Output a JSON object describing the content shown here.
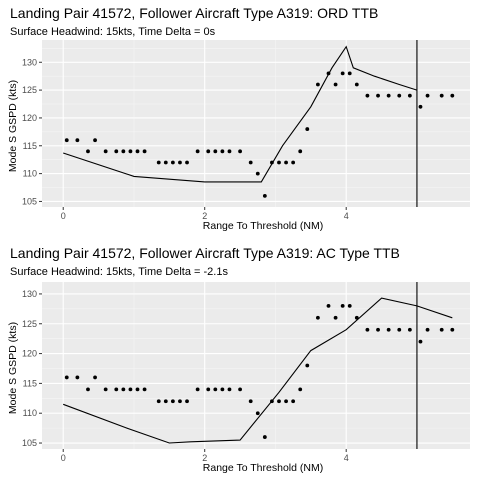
{
  "chart_data": [
    {
      "type": "scatter",
      "title": "Landing Pair 41572, Follower Aircraft Type A319: ORD TTB",
      "subtitle": "Surface Headwind: 15kts, Time Delta = 0s",
      "xlabel": "Range To Threshold (NM)",
      "ylabel": "Mode S GSPD (kts)",
      "xlim": [
        -0.3,
        5.75
      ],
      "ylim": [
        104,
        134
      ],
      "x_ticks": [
        0,
        2,
        4
      ],
      "y_ticks": [
        105,
        110,
        115,
        120,
        125,
        130
      ],
      "grid": true,
      "vline_x": 5.0,
      "points": {
        "x": [
          0.05,
          0.2,
          0.35,
          0.45,
          0.6,
          0.75,
          0.85,
          0.95,
          1.05,
          1.15,
          1.35,
          1.45,
          1.55,
          1.65,
          1.75,
          1.9,
          2.05,
          2.15,
          2.25,
          2.35,
          2.5,
          2.65,
          2.75,
          2.85,
          2.95,
          3.05,
          3.15,
          3.25,
          3.35,
          3.45,
          3.6,
          3.75,
          3.85,
          3.95,
          4.05,
          4.15,
          4.3,
          4.45,
          4.6,
          4.75,
          4.9,
          5.05,
          5.15,
          5.35,
          5.5
        ],
        "y": [
          116,
          116,
          114,
          116,
          114,
          114,
          114,
          114,
          114,
          114,
          112,
          112,
          112,
          112,
          112,
          114,
          114,
          114,
          114,
          114,
          114,
          112,
          110,
          106,
          112,
          112,
          112,
          112,
          114,
          118,
          126,
          128,
          126,
          128,
          128,
          126,
          124,
          124,
          124,
          124,
          124,
          122,
          124,
          124,
          124
        ]
      },
      "line": {
        "x": [
          0.0,
          1.0,
          2.0,
          2.8,
          3.1,
          3.5,
          3.8,
          4.0,
          4.1,
          4.4,
          4.75,
          5.0
        ],
        "y": [
          113.7,
          109.5,
          108.5,
          108.5,
          115,
          122,
          129,
          132.8,
          129,
          127.5,
          126,
          125
        ]
      }
    },
    {
      "type": "scatter",
      "title": "Landing Pair 41572, Follower Aircraft Type A319: AC Type TTB",
      "subtitle": "Surface Headwind: 15kts, Time Delta = -2.1s",
      "xlabel": "Range To Threshold (NM)",
      "ylabel": "Mode S GSPD (kts)",
      "xlim": [
        -0.3,
        5.75
      ],
      "ylim": [
        104,
        132
      ],
      "x_ticks": [
        0,
        2,
        4
      ],
      "y_ticks": [
        105,
        110,
        115,
        120,
        125,
        130
      ],
      "grid": true,
      "vline_x": 5.0,
      "points": {
        "x": [
          0.05,
          0.2,
          0.35,
          0.45,
          0.6,
          0.75,
          0.85,
          0.95,
          1.05,
          1.15,
          1.35,
          1.45,
          1.55,
          1.65,
          1.75,
          1.9,
          2.05,
          2.15,
          2.25,
          2.35,
          2.5,
          2.65,
          2.75,
          2.85,
          2.95,
          3.05,
          3.15,
          3.25,
          3.35,
          3.45,
          3.6,
          3.75,
          3.85,
          3.95,
          4.05,
          4.15,
          4.3,
          4.45,
          4.6,
          4.75,
          4.9,
          5.05,
          5.15,
          5.35,
          5.5
        ],
        "y": [
          116,
          116,
          114,
          116,
          114,
          114,
          114,
          114,
          114,
          114,
          112,
          112,
          112,
          112,
          112,
          114,
          114,
          114,
          114,
          114,
          114,
          112,
          110,
          106,
          112,
          112,
          112,
          112,
          114,
          118,
          126,
          128,
          126,
          128,
          128,
          126,
          124,
          124,
          124,
          124,
          124,
          122,
          124,
          124,
          124
        ]
      },
      "line": {
        "x": [
          0.0,
          0.9,
          1.5,
          1.8,
          2.5,
          3.05,
          3.5,
          4.0,
          4.5,
          5.0,
          5.5
        ],
        "y": [
          111.5,
          107.5,
          105,
          105.2,
          105.5,
          113.5,
          120.5,
          124,
          129.3,
          128,
          126
        ]
      }
    }
  ]
}
